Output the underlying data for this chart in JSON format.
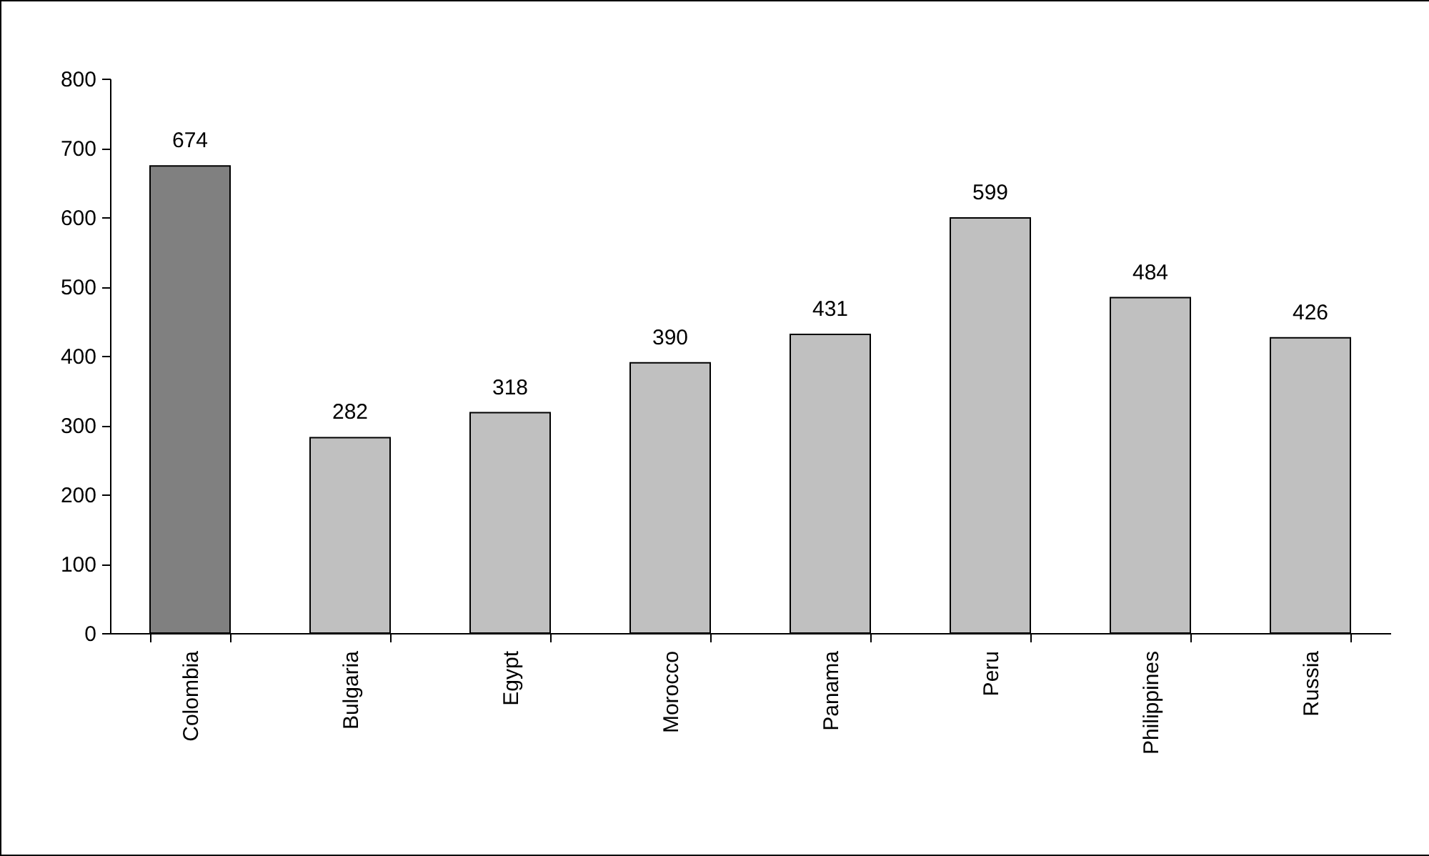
{
  "chart_data": {
    "type": "bar",
    "categories": [
      "Colombia",
      "Bulgaria",
      "Egypt",
      "Morocco",
      "Panama",
      "Peru",
      "Philippines",
      "Russia"
    ],
    "values": [
      674,
      282,
      318,
      390,
      431,
      599,
      484,
      426
    ],
    "colors": [
      "#808080",
      "#c0c0c0",
      "#c0c0c0",
      "#c0c0c0",
      "#c0c0c0",
      "#c0c0c0",
      "#c0c0c0",
      "#c0c0c0"
    ],
    "ylim": [
      0,
      800
    ],
    "yticks": [
      0,
      100,
      200,
      300,
      400,
      500,
      600,
      700,
      800
    ],
    "grid": false,
    "data_labels": true
  }
}
